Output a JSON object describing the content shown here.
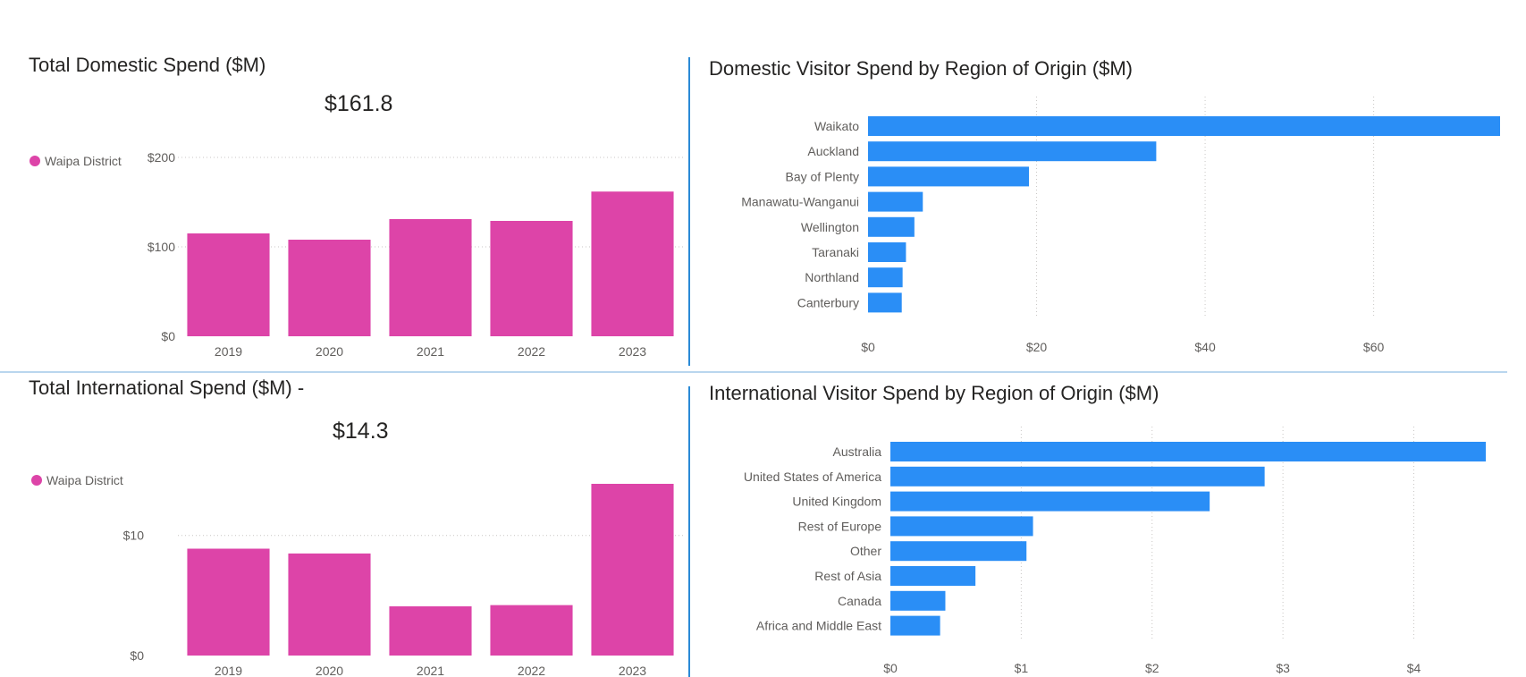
{
  "colors": {
    "pink": "#dd44a8",
    "blue": "#2a8ef6",
    "grid": "#c8c6c4",
    "label": "#605e5c",
    "divider": "#2a8ad6"
  },
  "panels": {
    "domestic_total": {
      "title": "Total Domestic Spend ($M)",
      "kpi": "$161.8",
      "legend_label": "Waipa District",
      "chart_data": {
        "type": "bar",
        "title": "Total Domestic Spend ($M)",
        "categories": [
          "2019",
          "2020",
          "2021",
          "2022",
          "2023"
        ],
        "values": [
          115,
          108,
          131,
          129,
          161.8
        ],
        "series": [
          {
            "name": "Waipa District",
            "values": [
              115,
              108,
              131,
              129,
              161.8
            ]
          }
        ],
        "ylim": [
          0,
          200
        ],
        "yticks": [
          0,
          100,
          200
        ],
        "ytick_labels": [
          "$0",
          "$100",
          "$200"
        ],
        "legend": "left",
        "grid": true
      }
    },
    "domestic_region": {
      "title": "Domestic Visitor Spend by Region of Origin ($M)",
      "chart_data": {
        "type": "bar",
        "orientation": "horizontal",
        "title": "Domestic Visitor Spend by Region of Origin ($M)",
        "categories": [
          "Waikato",
          "Auckland",
          "Bay of Plenty",
          "Manawatu-Wanganui",
          "Wellington",
          "Taranaki",
          "Northland",
          "Canterbury"
        ],
        "values": [
          75,
          34.2,
          19.1,
          6.5,
          5.5,
          4.5,
          4.1,
          4.0
        ],
        "xlim": [
          0,
          75
        ],
        "xticks": [
          0,
          20,
          40,
          60
        ],
        "xtick_labels": [
          "$0",
          "$20",
          "$40",
          "$60"
        ],
        "grid": true
      }
    },
    "intl_total": {
      "title": "Total International Spend ($M) -",
      "kpi": "$14.3",
      "legend_label": "Waipa District",
      "chart_data": {
        "type": "bar",
        "title": "Total International Spend ($M) -",
        "categories": [
          "2019",
          "2020",
          "2021",
          "2022",
          "2023"
        ],
        "values": [
          8.9,
          8.5,
          4.1,
          4.2,
          14.3
        ],
        "series": [
          {
            "name": "Waipa District",
            "values": [
              8.9,
              8.5,
              4.1,
              4.2,
              14.3
            ]
          }
        ],
        "ylim": [
          0,
          14.3
        ],
        "yticks": [
          0,
          10
        ],
        "ytick_labels": [
          "$0",
          "$10"
        ],
        "legend": "left",
        "grid": true
      }
    },
    "intl_region": {
      "title": "International Visitor Spend by Region of Origin ($M)",
      "chart_data": {
        "type": "bar",
        "orientation": "horizontal",
        "title": "International Visitor Spend by Region of Origin ($M)",
        "categories": [
          "Australia",
          "United States of America",
          "United Kingdom",
          "Rest of Europe",
          "Other",
          "Rest of Asia",
          "Canada",
          "Africa and Middle East"
        ],
        "values": [
          4.55,
          2.86,
          2.44,
          1.09,
          1.04,
          0.65,
          0.42,
          0.38
        ],
        "xlim": [
          0,
          4.55
        ],
        "xticks": [
          0,
          1,
          2,
          3,
          4
        ],
        "xtick_labels": [
          "$0",
          "$1",
          "$2",
          "$3",
          "$4"
        ],
        "grid": true
      }
    }
  }
}
